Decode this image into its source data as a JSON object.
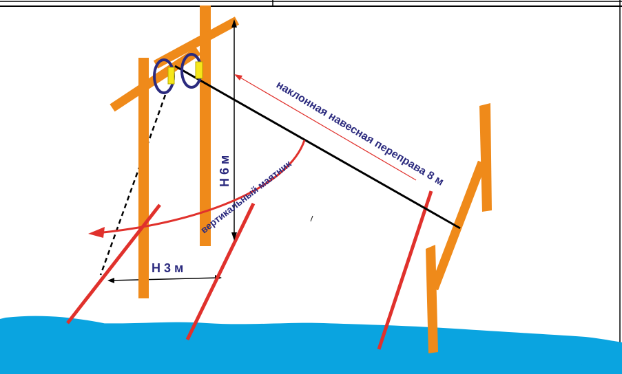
{
  "labels": {
    "incline_crossing": "наклонная навесная переправа 8 м",
    "pendulum": "вертикальный маятник",
    "height": "Н 6 м",
    "width": "Н 3 м"
  },
  "colors": {
    "post_orange": "#ef8a1a",
    "pole_red": "#e0312c",
    "water_blue": "#0aa4e0",
    "carabiner_navy": "#2b2a7e",
    "clip_yellow": "#f6e71a",
    "label_navy": "#2b2a7e",
    "arrow_red": "#e0312c"
  }
}
